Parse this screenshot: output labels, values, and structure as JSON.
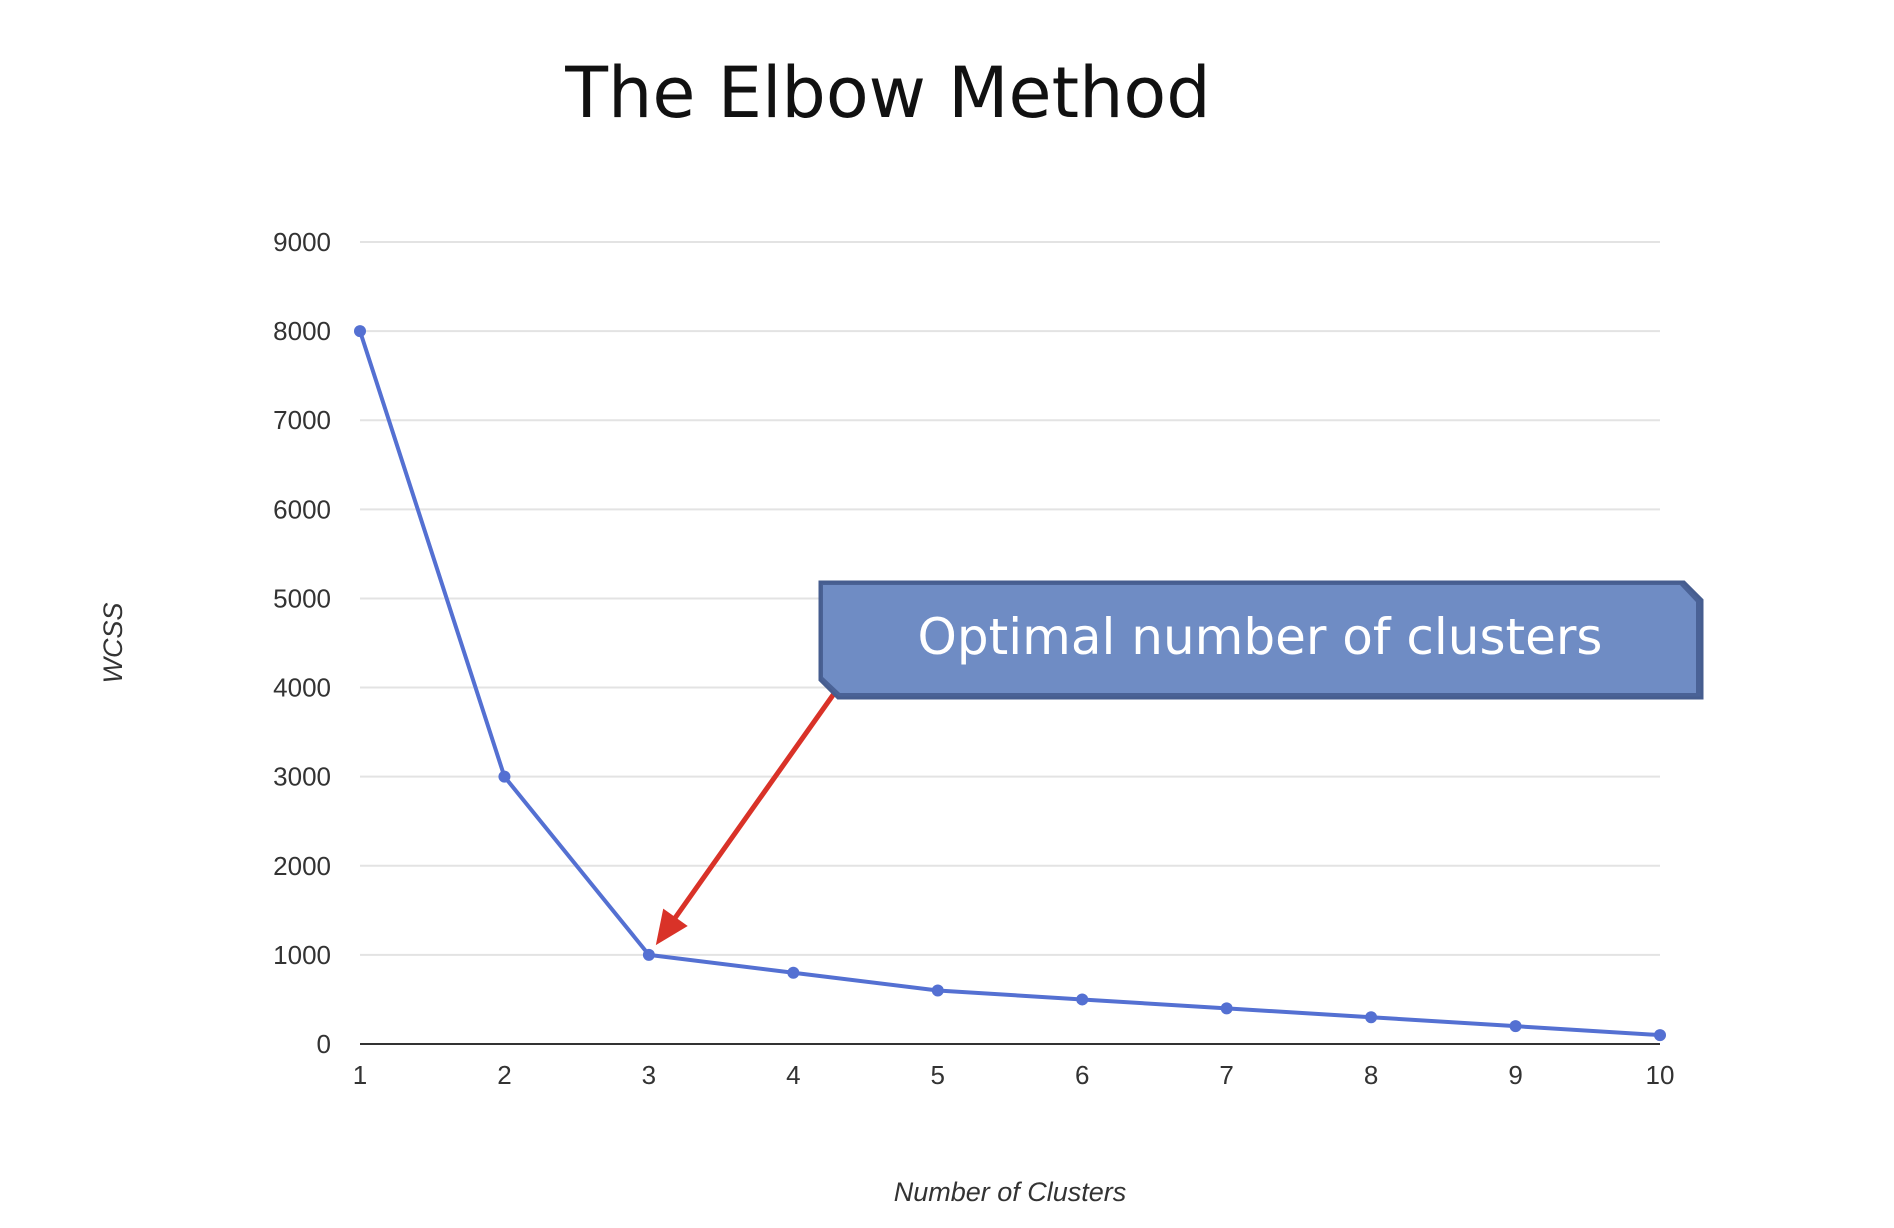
{
  "chart_data": {
    "type": "line",
    "title": "The Elbow Method",
    "xlabel": "Number of Clusters",
    "ylabel": "WCSS",
    "x": [
      1,
      2,
      3,
      4,
      5,
      6,
      7,
      8,
      9,
      10
    ],
    "y_ticks": [
      0,
      1000,
      2000,
      3000,
      4000,
      5000,
      6000,
      7000,
      8000,
      9000
    ],
    "ylim": [
      0,
      9000
    ],
    "xlim": [
      1,
      10
    ],
    "grid": true,
    "series": [
      {
        "values": [
          8000,
          3000,
          1000,
          800,
          600,
          500,
          400,
          300,
          200,
          100
        ],
        "color": "#5470d2"
      }
    ],
    "annotation": {
      "text": "Optimal number of clusters",
      "target_x": 3,
      "target_y": 1000,
      "box_color": "#6f8cc4",
      "arrow_color": "#d93228"
    }
  }
}
